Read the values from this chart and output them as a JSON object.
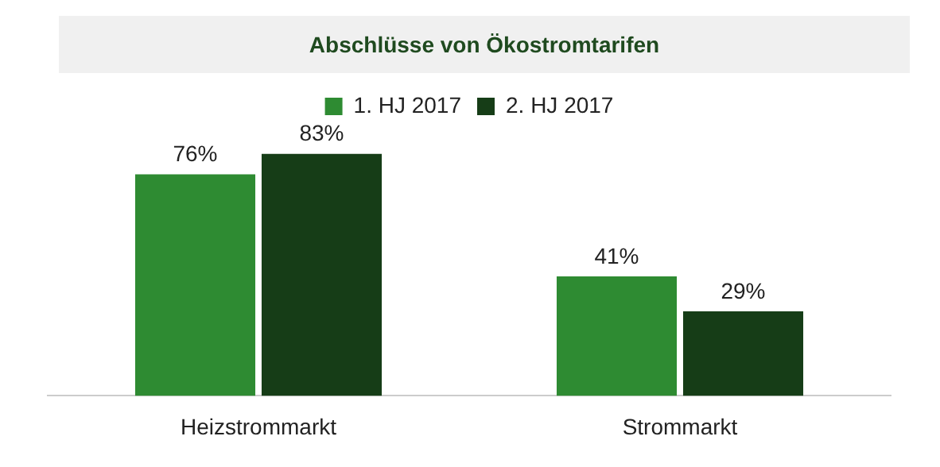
{
  "chart_data": {
    "type": "bar",
    "title": "Abschlüsse von Ökostromtarifen",
    "categories": [
      "Heizstrommarkt",
      "Strommarkt"
    ],
    "series": [
      {
        "name": "1. HJ 2017",
        "color": "#2e8b32",
        "values": [
          76,
          41
        ],
        "value_labels": [
          "76%",
          "41%"
        ]
      },
      {
        "name": "2. HJ 2017",
        "color": "#163d17",
        "values": [
          83,
          29
        ],
        "value_labels": [
          "83%",
          "29%"
        ]
      }
    ],
    "legend": "top",
    "grid": false,
    "tick_labels": "x"
  }
}
